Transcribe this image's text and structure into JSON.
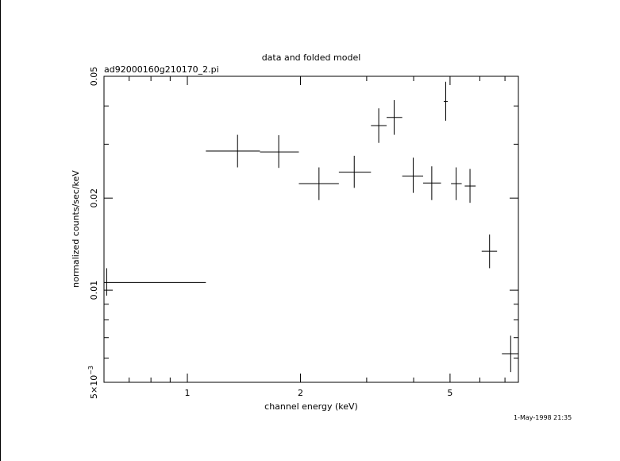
{
  "chart_data": {
    "type": "scatter",
    "title": "data and folded model",
    "subtitle": "ad92000160g210170_2.pi",
    "xlabel": "channel energy (keV)",
    "ylabel": "normalized counts/sec/keV",
    "xscale": "log",
    "yscale": "log",
    "xlim": [
      0.6,
      7.6
    ],
    "ylim": [
      0.005,
      0.05
    ],
    "grid": false,
    "x_ticks": [
      {
        "value": 1,
        "label": "1"
      },
      {
        "value": 2,
        "label": "2"
      },
      {
        "value": 5,
        "label": "5"
      }
    ],
    "y_ticks": [
      {
        "value": 0.005,
        "label": "5×10",
        "superscript": "−3"
      },
      {
        "value": 0.01,
        "label": "0.01",
        "superscript": ""
      },
      {
        "value": 0.02,
        "label": "0.02",
        "superscript": ""
      },
      {
        "value": 0.05,
        "label": "0.05",
        "superscript": ""
      }
    ],
    "series": [
      {
        "marker": "cross",
        "color": "#000000",
        "points": [
          {
            "x": 0.61,
            "xlo": 0.6,
            "xhi": 1.12,
            "y": 0.0106,
            "ylo": 0.0096,
            "yhi": 0.0118
          },
          {
            "x": 1.36,
            "xlo": 1.12,
            "xhi": 1.56,
            "y": 0.0285,
            "ylo": 0.0252,
            "yhi": 0.0322
          },
          {
            "x": 1.75,
            "xlo": 1.56,
            "xhi": 1.98,
            "y": 0.0283,
            "ylo": 0.0251,
            "yhi": 0.0321
          },
          {
            "x": 2.24,
            "xlo": 1.98,
            "xhi": 2.53,
            "y": 0.0223,
            "ylo": 0.0197,
            "yhi": 0.0252
          },
          {
            "x": 2.78,
            "xlo": 2.53,
            "xhi": 3.08,
            "y": 0.0243,
            "ylo": 0.0216,
            "yhi": 0.0275
          },
          {
            "x": 3.23,
            "xlo": 3.08,
            "xhi": 3.39,
            "y": 0.0345,
            "ylo": 0.0303,
            "yhi": 0.0393
          },
          {
            "x": 3.55,
            "xlo": 3.39,
            "xhi": 3.73,
            "y": 0.0367,
            "ylo": 0.0322,
            "yhi": 0.0418
          },
          {
            "x": 3.99,
            "xlo": 3.73,
            "xhi": 4.24,
            "y": 0.0236,
            "ylo": 0.0208,
            "yhi": 0.0271
          },
          {
            "x": 4.47,
            "xlo": 4.24,
            "xhi": 4.73,
            "y": 0.0224,
            "ylo": 0.0197,
            "yhi": 0.0254
          },
          {
            "x": 4.87,
            "xlo": 4.81,
            "xhi": 4.93,
            "y": 0.0414,
            "ylo": 0.0358,
            "yhi": 0.048
          },
          {
            "x": 5.19,
            "xlo": 5.03,
            "xhi": 5.37,
            "y": 0.0223,
            "ylo": 0.0197,
            "yhi": 0.0252
          },
          {
            "x": 5.65,
            "xlo": 5.47,
            "xhi": 5.85,
            "y": 0.0219,
            "ylo": 0.0193,
            "yhi": 0.0249
          },
          {
            "x": 6.37,
            "xlo": 6.07,
            "xhi": 6.67,
            "y": 0.0134,
            "ylo": 0.0118,
            "yhi": 0.0152
          },
          {
            "x": 7.25,
            "xlo": 6.87,
            "xhi": 7.6,
            "y": 0.0062,
            "ylo": 0.0054,
            "yhi": 0.0071
          }
        ]
      }
    ]
  },
  "footer": {
    "timestamp": "1-May-1998 21:35"
  }
}
